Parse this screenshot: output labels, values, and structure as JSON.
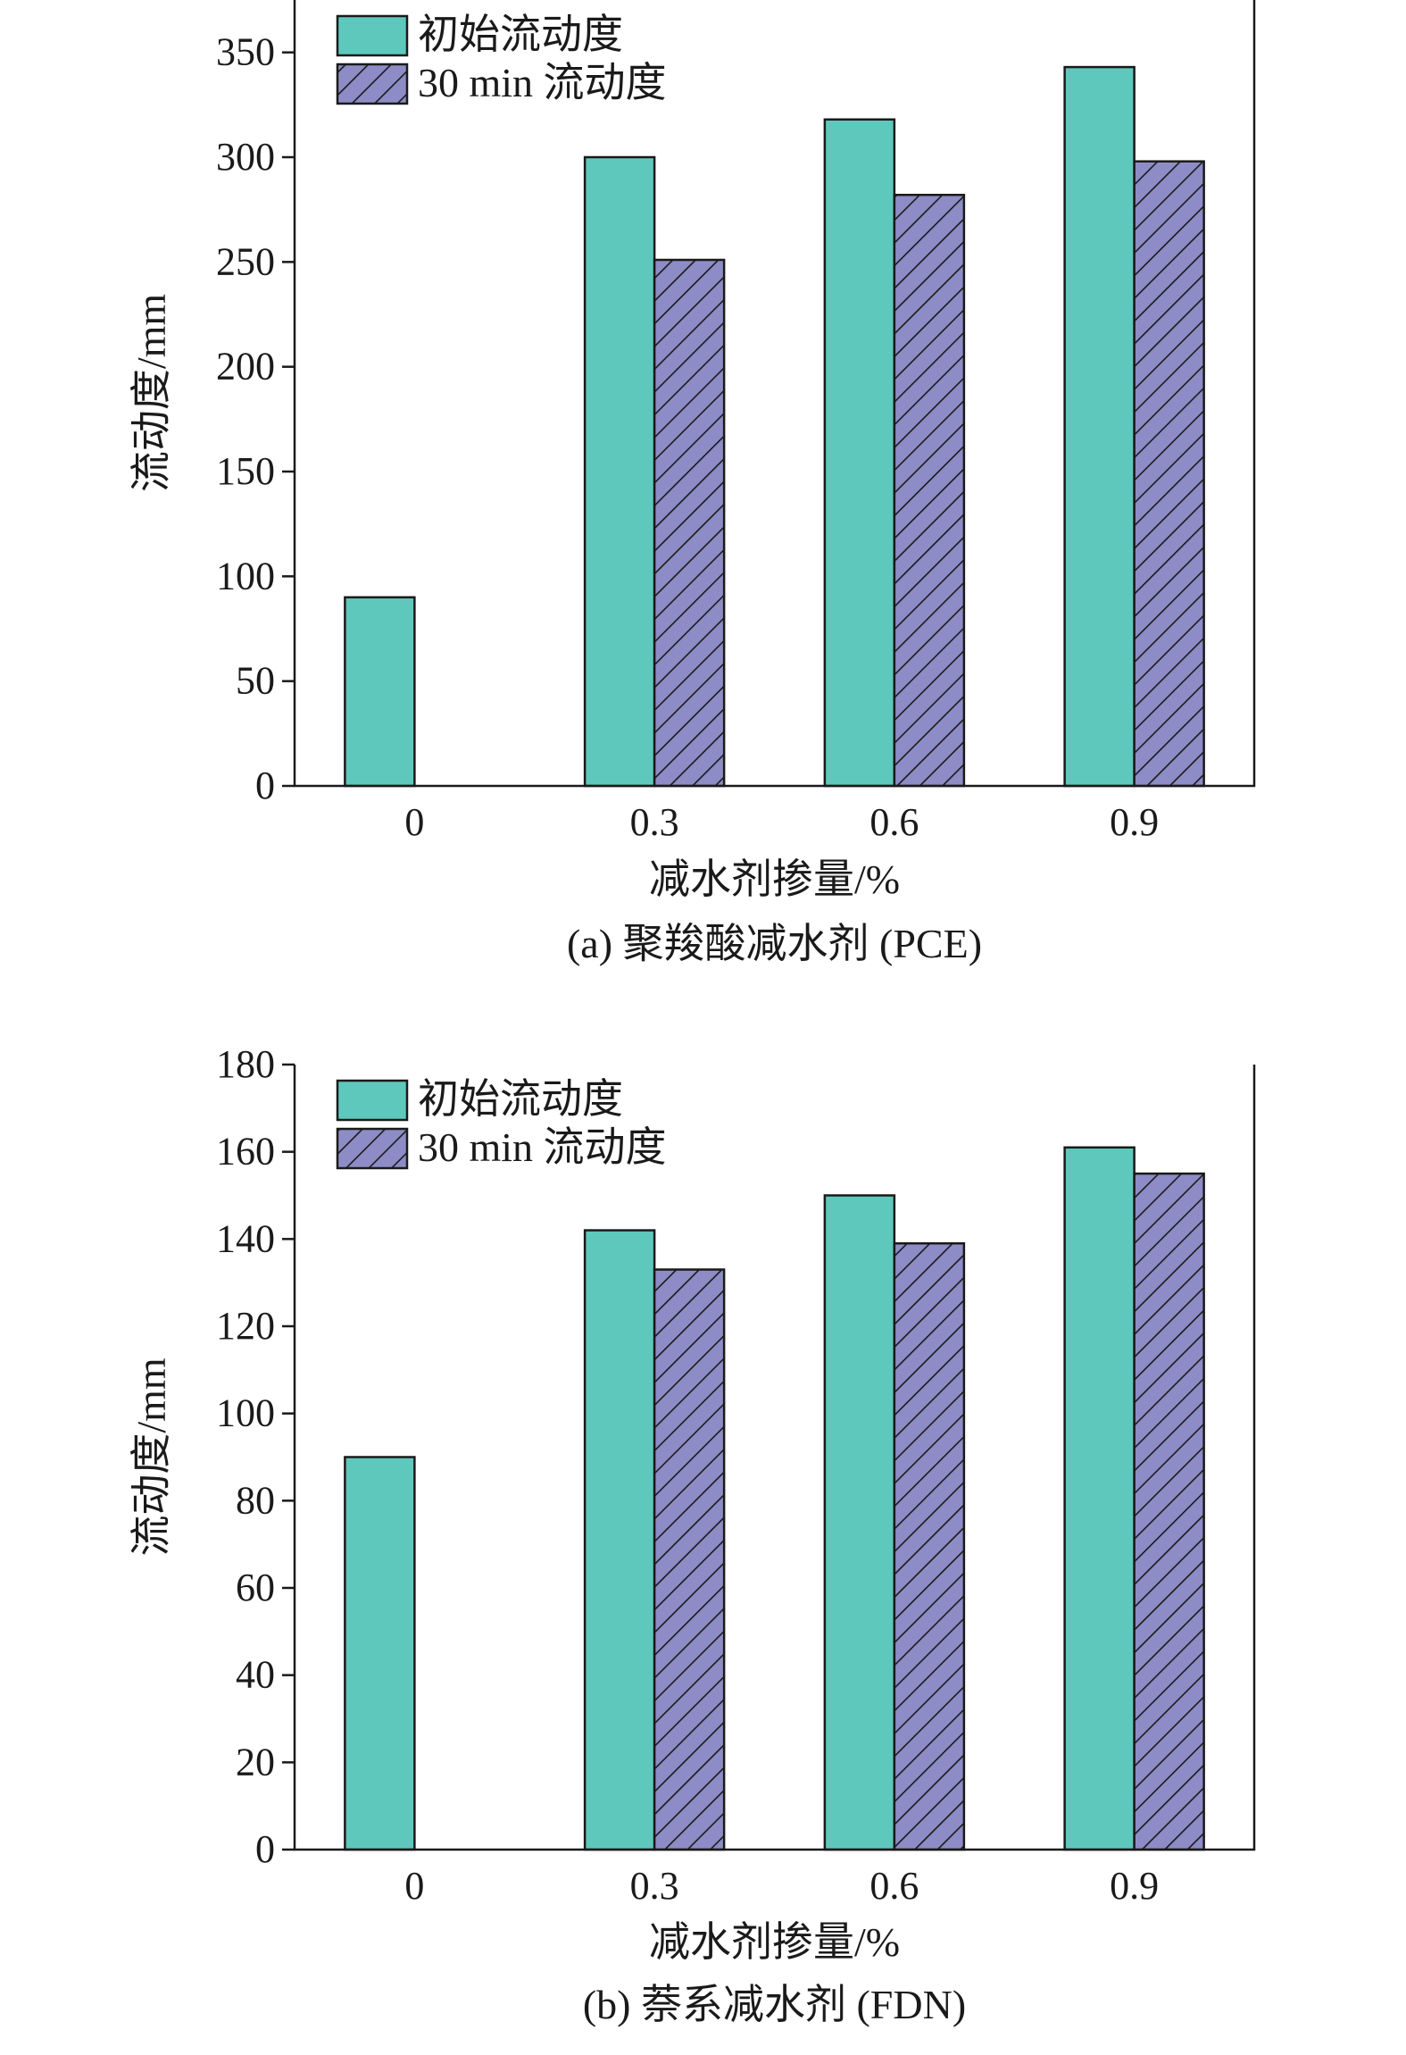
{
  "chart_data": [
    {
      "type": "bar",
      "title": "(a) 聚羧酸减水剂 (PCE)",
      "xlabel": "减水剂掺量/%",
      "ylabel": "流动度/mm",
      "categories": [
        "0",
        "0.3",
        "0.6",
        "0.9"
      ],
      "ylim": [
        0,
        375
      ],
      "yticks": [
        0,
        50,
        100,
        150,
        200,
        250,
        300,
        350
      ],
      "legend_position": "top-left",
      "series": [
        {
          "name": "初始流动度",
          "values": [
            90,
            300,
            318,
            343
          ]
        },
        {
          "name": "30 min 流动度",
          "values": [
            0,
            251,
            282,
            298
          ]
        }
      ]
    },
    {
      "type": "bar",
      "title": "(b) 萘系减水剂 (FDN)",
      "xlabel": "减水剂掺量/%",
      "ylabel": "流动度/mm",
      "categories": [
        "0",
        "0.3",
        "0.6",
        "0.9"
      ],
      "ylim": [
        0,
        180
      ],
      "yticks": [
        0,
        20,
        40,
        60,
        80,
        100,
        120,
        140,
        160,
        180
      ],
      "legend_position": "top-left",
      "series": [
        {
          "name": "初始流动度",
          "values": [
            90,
            142,
            150,
            161
          ]
        },
        {
          "name": "30 min 流动度",
          "values": [
            0,
            133,
            139,
            155
          ]
        }
      ]
    }
  ],
  "colors": {
    "initial": "#5ec8bc",
    "after_30min": "#8e8cc6",
    "hatch_line": "#1a1a1a",
    "axis": "#1a1a1a"
  }
}
